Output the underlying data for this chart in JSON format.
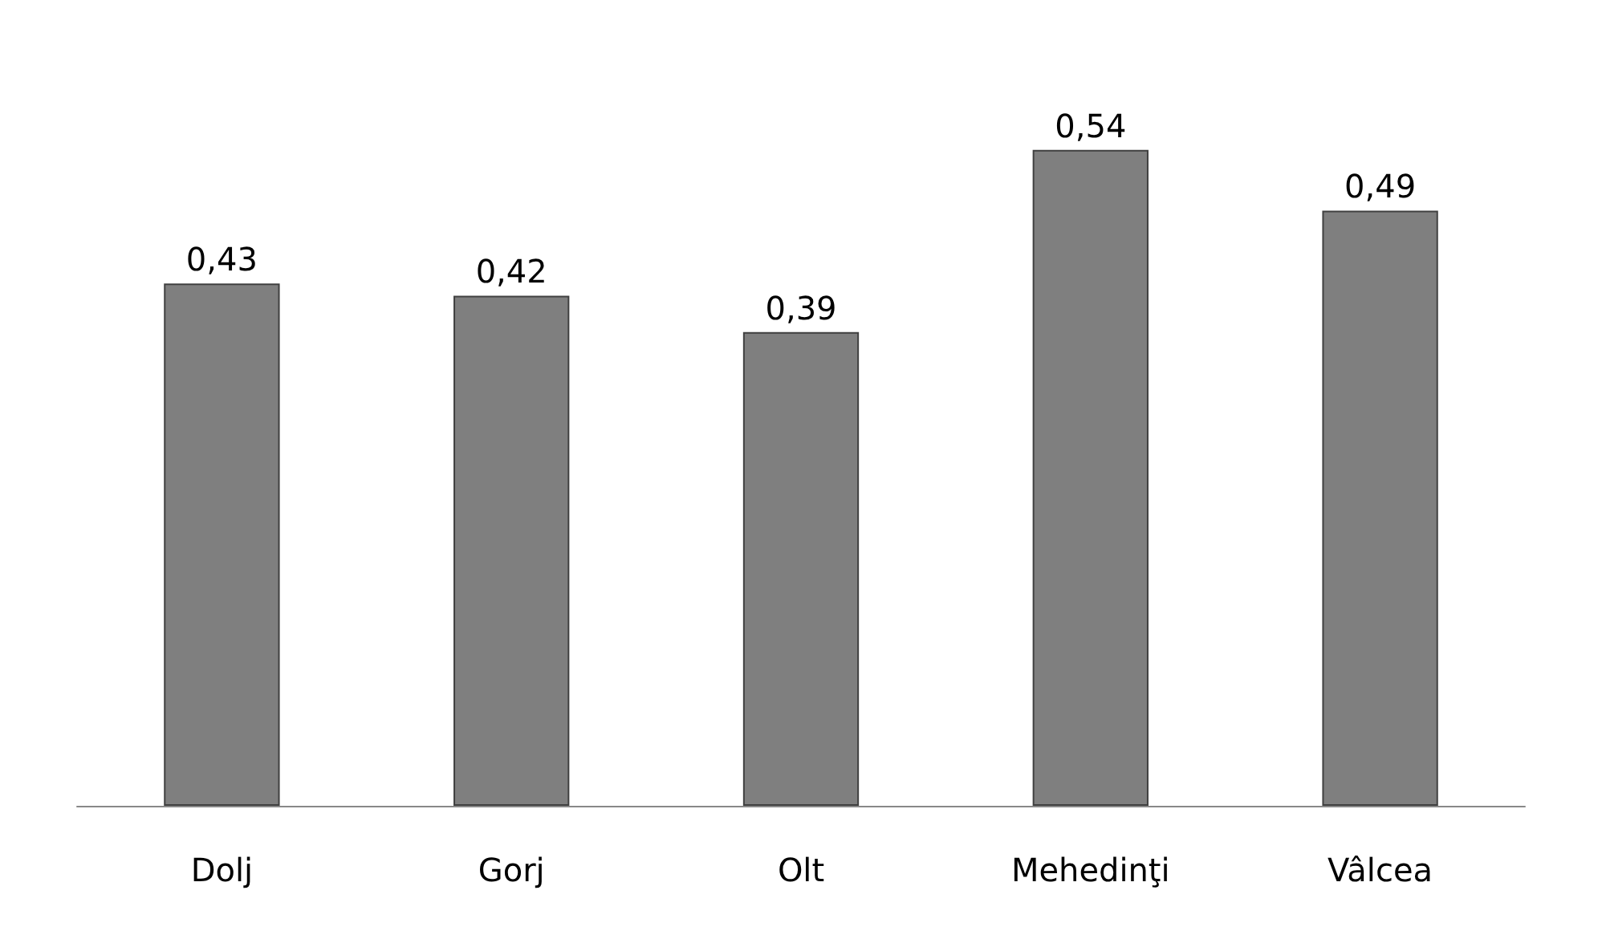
{
  "chart_data": {
    "type": "bar",
    "categories": [
      "Dolj",
      "Gorj",
      "Olt",
      "Mehedinţi",
      "Vâlcea"
    ],
    "values": [
      0.43,
      0.42,
      0.39,
      0.54,
      0.49
    ],
    "value_labels": [
      "0,43",
      "0,42",
      "0,39",
      "0,54",
      "0,49"
    ],
    "color": "#7f7f7f"
  }
}
